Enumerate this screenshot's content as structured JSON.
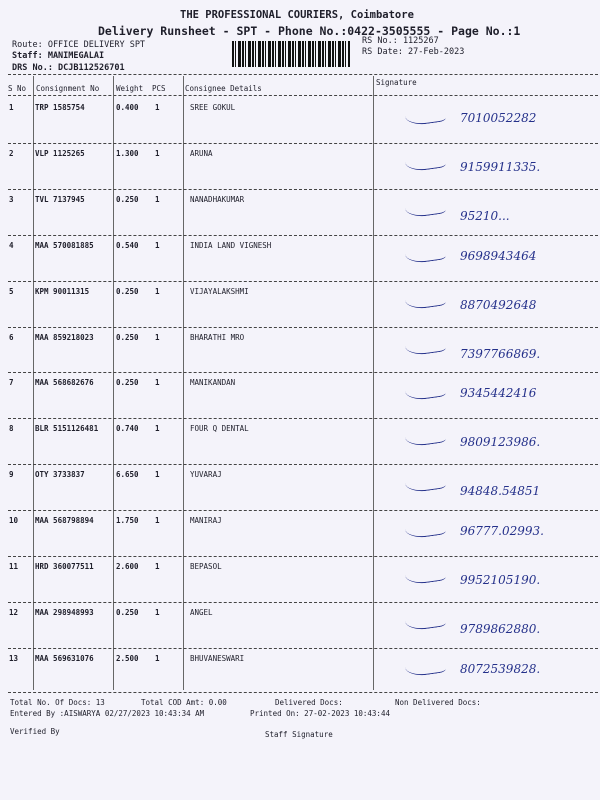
{
  "header": {
    "title": "THE PROFESSIONAL COURIERS, Coimbatore",
    "subtitle": "Delivery Runsheet - SPT - Phone No.:0422-3505555 - Page No.:1",
    "route": "Route: OFFICE DELIVERY SPT",
    "staff": "Staff: MANIMEGALAI",
    "drs": "DRS No.: DCJB112526701",
    "rs_no": "RS No.: 1125267",
    "rs_date": "RS Date: 27-Feb-2023"
  },
  "table": {
    "columns": [
      "S No",
      "Consignment No",
      "Weight",
      "PCS",
      "Consignee Details",
      "Signature"
    ],
    "rows": [
      {
        "sno": "1",
        "cn": "TRP 1585754",
        "weight": "0.400",
        "pcs": "1",
        "consignee": "SREE GOKUL",
        "phone": "7010052282"
      },
      {
        "sno": "2",
        "cn": "VLP 1125265",
        "weight": "1.300",
        "pcs": "1",
        "consignee": "ARUNA",
        "phone": "9159911335."
      },
      {
        "sno": "3",
        "cn": "TVL 7137945",
        "weight": "0.250",
        "pcs": "1",
        "consignee": "NANADHAKUMAR",
        "phone": "95210..."
      },
      {
        "sno": "4",
        "cn": "MAA 570081885",
        "weight": "0.540",
        "pcs": "1",
        "consignee": "INDIA LAND VIGNESH",
        "phone": "9698943464"
      },
      {
        "sno": "5",
        "cn": "KPM 90011315",
        "weight": "0.250",
        "pcs": "1",
        "consignee": "VIJAYALAKSHMI",
        "phone": "8870492648"
      },
      {
        "sno": "6",
        "cn": "MAA 859218023",
        "weight": "0.250",
        "pcs": "1",
        "consignee": "BHARATHI MRO",
        "phone": "7397766869."
      },
      {
        "sno": "7",
        "cn": "MAA 568682676",
        "weight": "0.250",
        "pcs": "1",
        "consignee": "MANIKANDAN",
        "phone": "9345442416"
      },
      {
        "sno": "8",
        "cn": "BLR 5151126481",
        "weight": "0.740",
        "pcs": "1",
        "consignee": "FOUR Q DENTAL",
        "phone": "9809123986."
      },
      {
        "sno": "9",
        "cn": "OTY 3733837",
        "weight": "6.650",
        "pcs": "1",
        "consignee": "YUVARAJ",
        "phone": "94848.54851"
      },
      {
        "sno": "10",
        "cn": "MAA 568798894",
        "weight": "1.750",
        "pcs": "1",
        "consignee": "MANIRAJ",
        "phone": "96777.02993."
      },
      {
        "sno": "11",
        "cn": "HRD 360077511",
        "weight": "2.600",
        "pcs": "1",
        "consignee": "BEPASOL",
        "phone": "9952105190."
      },
      {
        "sno": "12",
        "cn": "MAA 298948993",
        "weight": "0.250",
        "pcs": "1",
        "consignee": "ANGEL",
        "phone": "9789862880."
      },
      {
        "sno": "13",
        "cn": "MAA 569631076",
        "weight": "2.500",
        "pcs": "1",
        "consignee": "BHUVANESWARI",
        "phone": "8072539828."
      }
    ]
  },
  "footer": {
    "total_docs": "Total No. Of Docs:  13",
    "total_cod": "Total COD Amt:    0.00",
    "delivered": "Delivered Docs:",
    "non_delivered": "Non Delivered Docs:",
    "entered_by": "Entered By :AISWARYA 02/27/2023 10:43:34 AM",
    "printed_on": "Printed On: 27-02-2023 10:43:44",
    "verified_by": "Verified By",
    "staff_signature": "Staff Signature"
  }
}
